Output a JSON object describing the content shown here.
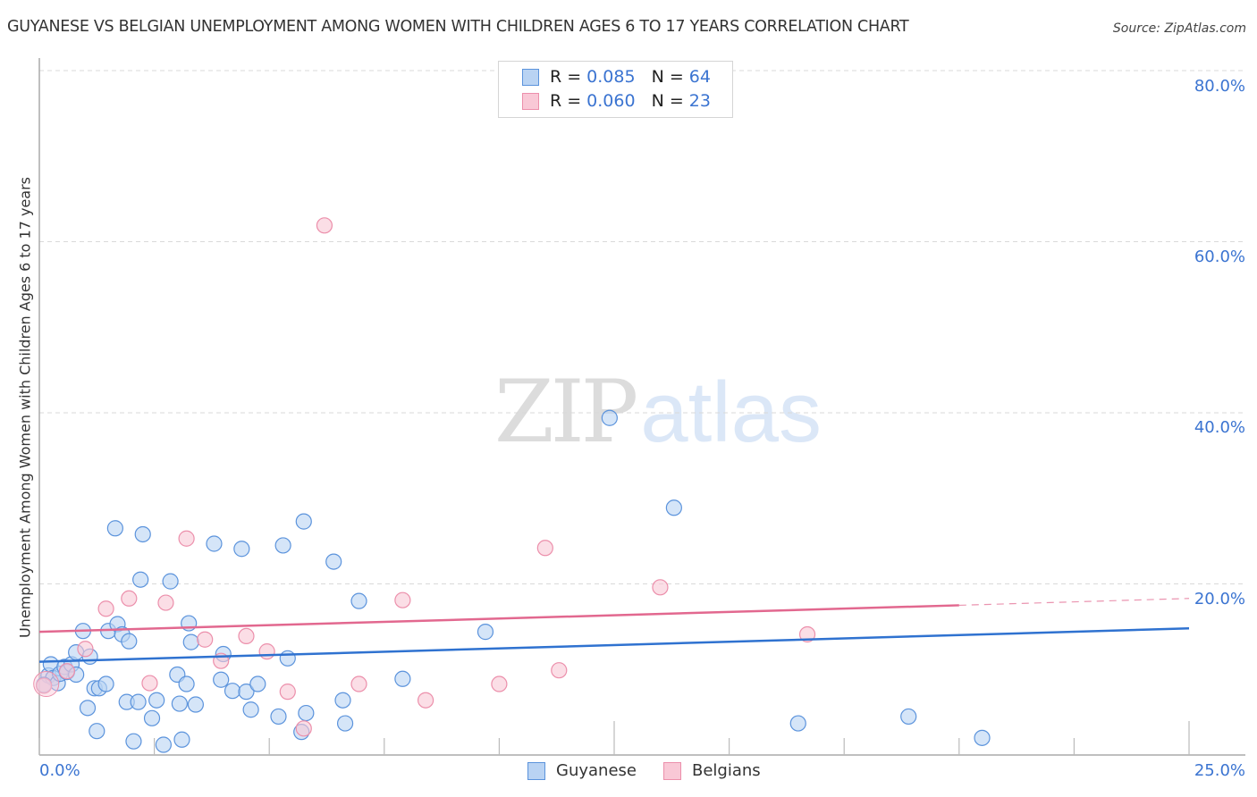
{
  "title": "GUYANESE VS BELGIAN UNEMPLOYMENT AMONG WOMEN WITH CHILDREN AGES 6 TO 17 YEARS CORRELATION CHART",
  "source": "Source: ZipAtlas.com",
  "watermark": {
    "zip": "ZIP",
    "atlas": "atlas"
  },
  "legend": {
    "rows": [
      {
        "series": "Guyanese",
        "r_label": "R =",
        "r_value": "0.085",
        "n_label": "N =",
        "n_value": "64"
      },
      {
        "series": "Belgians",
        "r_label": "R =",
        "r_value": "0.060",
        "n_label": "N =",
        "n_value": "23"
      }
    ]
  },
  "bottom_legend": [
    {
      "label": "Guyanese"
    },
    {
      "label": "Belgians"
    }
  ],
  "axes": {
    "ylabel": "Unemployment Among Women with Children Ages 6 to 17 years",
    "x_min_label": "0.0%",
    "x_max_label": "25.0%",
    "y_tick_labels": [
      "80.0%",
      "60.0%",
      "40.0%",
      "20.0%"
    ]
  },
  "colors": {
    "guyanese_fill": "#b9d3f3",
    "guyanese_stroke": "#5b93dc",
    "guyanese_line": "#2f72d0",
    "belgians_fill": "#f9c8d6",
    "belgians_stroke": "#ec8fab",
    "belgians_line": "#e2688f",
    "axis_text": "#3b74d1",
    "grid": "#d9d9d9"
  },
  "chart_data": {
    "type": "scatter",
    "title": "GUYANESE VS BELGIAN UNEMPLOYMENT AMONG WOMEN WITH CHILDREN AGES 6 TO 17 YEARS CORRELATION CHART",
    "xlabel": "",
    "ylabel": "Unemployment Among Women with Children Ages 6 to 17 years",
    "xlim": [
      0,
      25
    ],
    "ylim": [
      0,
      80
    ],
    "x_ticks": [
      "0.0%",
      "25.0%"
    ],
    "y_ticks": [
      "20.0%",
      "40.0%",
      "60.0%",
      "80.0%"
    ],
    "grid": "horizontal dashed",
    "legend_position": "top center + bottom",
    "series": [
      {
        "name": "Guyanese",
        "R": 0.085,
        "N": 64,
        "trend": {
          "x": [
            0,
            25
          ],
          "y": [
            10.9,
            14.8
          ]
        },
        "points": [
          [
            0.2,
            9.3
          ],
          [
            0.25,
            10.6
          ],
          [
            0.3,
            9.0
          ],
          [
            0.4,
            8.4
          ],
          [
            0.45,
            9.5
          ],
          [
            0.55,
            10.3
          ],
          [
            0.6,
            9.7
          ],
          [
            0.7,
            10.6
          ],
          [
            0.8,
            9.4
          ],
          [
            0.8,
            12.0
          ],
          [
            0.95,
            14.5
          ],
          [
            1.05,
            5.5
          ],
          [
            1.2,
            7.8
          ],
          [
            1.25,
            2.8
          ],
          [
            1.3,
            7.8
          ],
          [
            1.45,
            8.3
          ],
          [
            1.5,
            14.5
          ],
          [
            1.65,
            26.5
          ],
          [
            1.7,
            15.3
          ],
          [
            1.8,
            14.1
          ],
          [
            1.95,
            13.3
          ],
          [
            1.9,
            6.2
          ],
          [
            2.05,
            1.6
          ],
          [
            2.15,
            6.2
          ],
          [
            2.2,
            20.5
          ],
          [
            2.25,
            25.8
          ],
          [
            2.45,
            4.3
          ],
          [
            2.55,
            6.4
          ],
          [
            2.7,
            1.2
          ],
          [
            2.85,
            20.3
          ],
          [
            3.0,
            9.4
          ],
          [
            3.05,
            6.0
          ],
          [
            3.1,
            1.8
          ],
          [
            3.2,
            8.3
          ],
          [
            3.25,
            15.4
          ],
          [
            3.3,
            13.2
          ],
          [
            3.4,
            5.9
          ],
          [
            3.8,
            24.7
          ],
          [
            3.95,
            8.8
          ],
          [
            4.0,
            11.8
          ],
          [
            4.2,
            7.5
          ],
          [
            4.4,
            24.1
          ],
          [
            4.5,
            7.4
          ],
          [
            4.6,
            5.3
          ],
          [
            4.75,
            8.3
          ],
          [
            5.2,
            4.5
          ],
          [
            5.3,
            24.5
          ],
          [
            5.4,
            11.3
          ],
          [
            5.7,
            2.7
          ],
          [
            5.8,
            4.9
          ],
          [
            5.75,
            27.3
          ],
          [
            6.4,
            22.6
          ],
          [
            6.6,
            6.4
          ],
          [
            6.65,
            3.7
          ],
          [
            6.95,
            18.0
          ],
          [
            7.9,
            8.9
          ],
          [
            9.7,
            14.4
          ],
          [
            12.4,
            39.4
          ],
          [
            13.8,
            28.9
          ],
          [
            16.5,
            3.7
          ],
          [
            18.9,
            4.5
          ],
          [
            20.5,
            2.0
          ],
          [
            0.1,
            8.2
          ],
          [
            1.1,
            11.5
          ]
        ]
      },
      {
        "name": "Belgians",
        "R": 0.06,
        "N": 23,
        "trend": {
          "x": [
            0,
            20
          ],
          "y": [
            14.4,
            17.5
          ]
        },
        "trend_dashed_extension": {
          "x": [
            20,
            25
          ],
          "y": [
            17.5,
            18.3
          ]
        },
        "points": [
          [
            0.1,
            8.1
          ],
          [
            0.6,
            9.8
          ],
          [
            1.0,
            12.4
          ],
          [
            1.45,
            17.1
          ],
          [
            1.95,
            18.3
          ],
          [
            2.4,
            8.4
          ],
          [
            2.75,
            17.8
          ],
          [
            3.2,
            25.3
          ],
          [
            3.6,
            13.5
          ],
          [
            3.95,
            11.0
          ],
          [
            4.5,
            13.9
          ],
          [
            4.95,
            12.1
          ],
          [
            5.4,
            7.4
          ],
          [
            5.75,
            3.1
          ],
          [
            6.2,
            61.9
          ],
          [
            6.95,
            8.3
          ],
          [
            7.9,
            18.1
          ],
          [
            8.4,
            6.4
          ],
          [
            10.0,
            8.3
          ],
          [
            11.0,
            24.2
          ],
          [
            11.3,
            9.9
          ],
          [
            13.5,
            19.6
          ],
          [
            16.7,
            14.1
          ]
        ]
      }
    ]
  }
}
